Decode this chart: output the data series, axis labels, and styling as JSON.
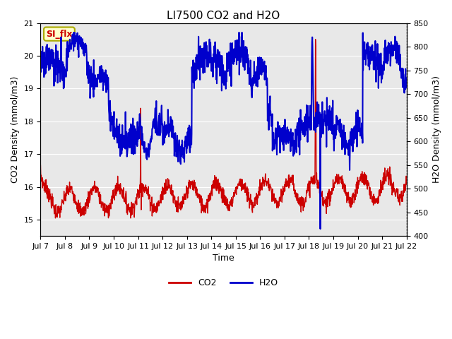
{
  "title": "LI7500 CO2 and H2O",
  "xlabel": "Time",
  "ylabel_left": "CO2 Density (mmol/m3)",
  "ylabel_right": "H2O Density (mmol/m3)",
  "ylim_left": [
    14.5,
    21.0
  ],
  "ylim_right": [
    400,
    850
  ],
  "xtick_labels": [
    "Jul 7",
    "Jul 8",
    "Jul 9",
    "Jul 10",
    "Jul 11",
    "Jul 12",
    "Jul 13",
    "Jul 14",
    "Jul 15",
    "Jul 16",
    "Jul 17",
    "Jul 18",
    "Jul 19",
    "Jul 20",
    "Jul 21",
    "Jul 22"
  ],
  "co2_color": "#cc0000",
  "h2o_color": "#0000cc",
  "background_color": "#e8e8e8",
  "annotation_text": "SI_flx",
  "annotation_facecolor": "#ffffcc",
  "annotation_edgecolor": "#aaaa00",
  "legend_co2": "CO2",
  "legend_h2o": "H2O",
  "title_fontsize": 11,
  "axis_fontsize": 9,
  "tick_fontsize": 8,
  "legend_fontsize": 9,
  "linewidth_co2": 1.0,
  "linewidth_h2o": 1.5
}
